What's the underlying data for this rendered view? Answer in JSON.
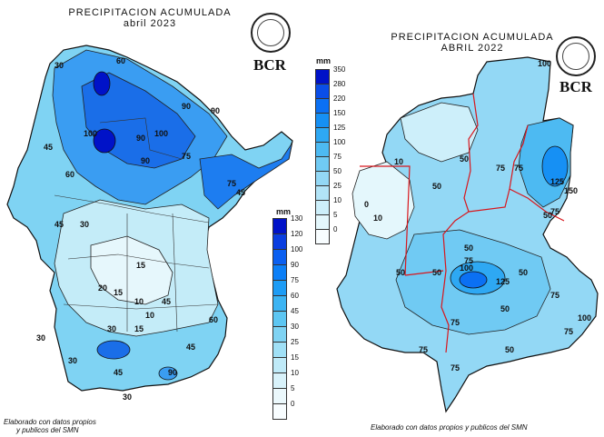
{
  "left_map": {
    "title": "PRECIPITACION ACUMULADA",
    "subtitle": "abril 2023",
    "brand": "BCR",
    "unit": "mm",
    "legend_values": [
      "130",
      "120",
      "100",
      "90",
      "75",
      "60",
      "45",
      "30",
      "25",
      "15",
      "10",
      "5",
      "0"
    ],
    "legend_colors": [
      "#0012c8",
      "#0a3ee0",
      "#0a5ff0",
      "#0b7ff7",
      "#1d9cf5",
      "#3cb4f3",
      "#5dc6f2",
      "#7fd3f3",
      "#a0e0f6",
      "#bfeaf8",
      "#d8f2fa",
      "#ebf8fc",
      "#f8fdff"
    ],
    "contour_labels": [
      "30",
      "60",
      "90",
      "45",
      "100",
      "90",
      "60",
      "100",
      "90",
      "75",
      "30",
      "45",
      "15",
      "20",
      "10",
      "15",
      "30",
      "15",
      "10",
      "45",
      "30",
      "45",
      "60",
      "30",
      "45",
      "90",
      "30",
      "45",
      "75",
      "90"
    ],
    "footer_line1": "Elaborado con datos propios",
    "footer_line2": "y publicos del SMN"
  },
  "right_map": {
    "title": "PRECIPITACION ACUMULADA",
    "subtitle": "ABRIL 2022",
    "brand": "BCR",
    "unit": "mm",
    "legend_values": [
      "350",
      "280",
      "220",
      "150",
      "125",
      "100",
      "75",
      "50",
      "25",
      "10",
      "5",
      "0"
    ],
    "legend_colors": [
      "#0012c8",
      "#0a4ee8",
      "#0b70f3",
      "#1690f4",
      "#2ea8f3",
      "#4dbaf2",
      "#70caf3",
      "#93d8f5",
      "#b2e4f7",
      "#cdeffa",
      "#e4f7fc",
      "#f8fdff"
    ],
    "contour_labels": [
      "100",
      "75",
      "50",
      "75",
      "10",
      "50",
      "0",
      "10",
      "125",
      "150",
      "75",
      "50",
      "50",
      "75",
      "100",
      "125",
      "50",
      "50",
      "75",
      "100",
      "75",
      "50",
      "75",
      "50",
      "75",
      "75",
      "50"
    ],
    "footer": "Elaborado con datos propios y publicos del SMN"
  }
}
